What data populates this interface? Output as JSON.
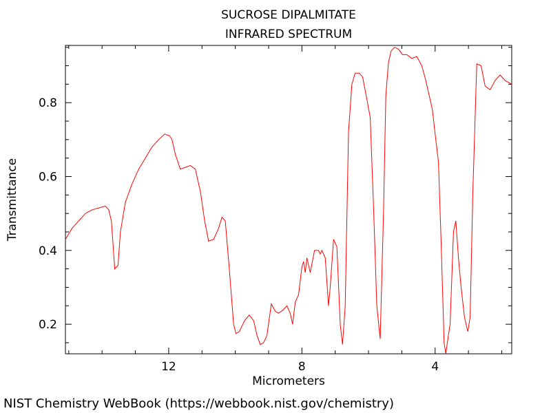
{
  "chart_data": {
    "type": "line",
    "title": "SUCROSE DIPALMITATE",
    "subtitle": "INFRARED SPECTRUM",
    "xlabel": "Micrometers",
    "ylabel": "Transmittance",
    "xlim": [
      15.1,
      1.7
    ],
    "ylim": [
      0.12,
      0.955
    ],
    "x_ticks": [
      12,
      8,
      4
    ],
    "y_ticks": [
      0.2,
      0.4,
      0.6,
      0.8
    ],
    "grid": false,
    "color": "#ff0000",
    "series": [
      {
        "x": [
          15.1,
          14.9,
          14.7,
          14.5,
          14.3,
          14.1,
          13.9,
          13.8,
          13.72,
          13.62,
          13.52,
          13.45,
          13.3,
          13.1,
          12.9,
          12.7,
          12.5,
          12.3,
          12.12,
          11.97,
          11.9,
          11.8,
          11.65,
          11.5,
          11.35,
          11.2,
          11.05,
          10.92,
          10.8,
          10.65,
          10.5,
          10.4,
          10.3,
          10.18,
          10.05,
          9.98,
          9.88,
          9.72,
          9.58,
          9.45,
          9.35,
          9.25,
          9.15,
          9.05,
          8.92,
          8.8,
          8.7,
          8.55,
          8.45,
          8.35,
          8.28,
          8.2,
          8.1,
          8.0,
          7.95,
          7.9,
          7.85,
          7.75,
          7.62,
          7.5,
          7.45,
          7.4,
          7.3,
          7.2,
          7.15,
          7.05,
          6.95,
          6.85,
          6.78,
          6.7,
          6.6,
          6.5,
          6.4,
          6.28,
          6.18,
          6.05,
          5.95,
          5.85,
          5.75,
          5.65,
          5.55,
          5.48,
          5.4,
          5.32,
          5.22,
          5.1,
          4.98,
          4.85,
          4.7,
          4.55,
          4.4,
          4.28,
          4.18,
          4.08,
          3.98,
          3.9,
          3.82,
          3.73,
          3.68,
          3.62,
          3.55,
          3.45,
          3.38,
          3.3,
          3.22,
          3.12,
          3.02,
          2.95,
          2.87,
          2.75,
          2.62,
          2.5,
          2.35,
          2.2,
          2.05,
          1.9,
          1.8,
          1.7
        ],
        "y": [
          0.43,
          0.46,
          0.48,
          0.5,
          0.51,
          0.515,
          0.52,
          0.51,
          0.48,
          0.35,
          0.36,
          0.45,
          0.53,
          0.58,
          0.62,
          0.65,
          0.68,
          0.7,
          0.715,
          0.71,
          0.7,
          0.66,
          0.62,
          0.625,
          0.63,
          0.62,
          0.56,
          0.48,
          0.425,
          0.43,
          0.46,
          0.49,
          0.48,
          0.35,
          0.2,
          0.175,
          0.18,
          0.21,
          0.225,
          0.21,
          0.17,
          0.145,
          0.15,
          0.17,
          0.255,
          0.235,
          0.23,
          0.24,
          0.25,
          0.23,
          0.2,
          0.26,
          0.28,
          0.355,
          0.37,
          0.34,
          0.38,
          0.34,
          0.4,
          0.4,
          0.39,
          0.4,
          0.38,
          0.25,
          0.3,
          0.43,
          0.41,
          0.2,
          0.145,
          0.25,
          0.72,
          0.85,
          0.88,
          0.88,
          0.87,
          0.81,
          0.76,
          0.52,
          0.25,
          0.16,
          0.5,
          0.82,
          0.91,
          0.94,
          0.95,
          0.945,
          0.93,
          0.93,
          0.92,
          0.925,
          0.9,
          0.86,
          0.82,
          0.78,
          0.7,
          0.64,
          0.42,
          0.15,
          0.12,
          0.16,
          0.2,
          0.45,
          0.48,
          0.38,
          0.3,
          0.22,
          0.18,
          0.22,
          0.55,
          0.905,
          0.9,
          0.845,
          0.835,
          0.86,
          0.875,
          0.86,
          0.855,
          0.85
        ]
      }
    ]
  },
  "footer": "NIST Chemistry WebBook (https://webbook.nist.gov/chemistry)"
}
